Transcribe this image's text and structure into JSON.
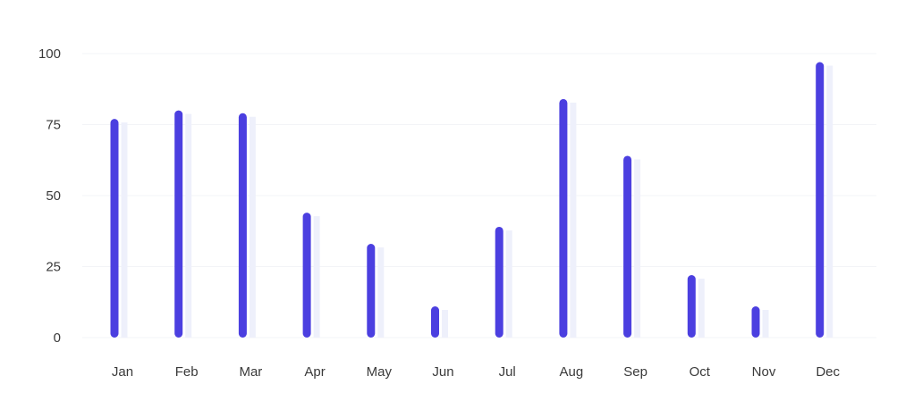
{
  "chart_data": {
    "type": "bar",
    "categories": [
      "Jan",
      "Feb",
      "Mar",
      "Apr",
      "May",
      "Jun",
      "Jul",
      "Aug",
      "Sep",
      "Oct",
      "Nov",
      "Dec"
    ],
    "series": [
      {
        "values": [
          77,
          80,
          79,
          44,
          33,
          11,
          39,
          84,
          64,
          22,
          11,
          97
        ],
        "color": "#4b3fe0"
      }
    ],
    "shadow_color": "#eef0fb",
    "ylim": [
      0,
      100
    ],
    "yticks": [
      0,
      25,
      50,
      75,
      100
    ],
    "ytick_labels": [
      "0",
      "25",
      "50",
      "75",
      "100"
    ],
    "grid": true,
    "legend": false,
    "title": "",
    "xlabel": "",
    "ylabel": ""
  }
}
